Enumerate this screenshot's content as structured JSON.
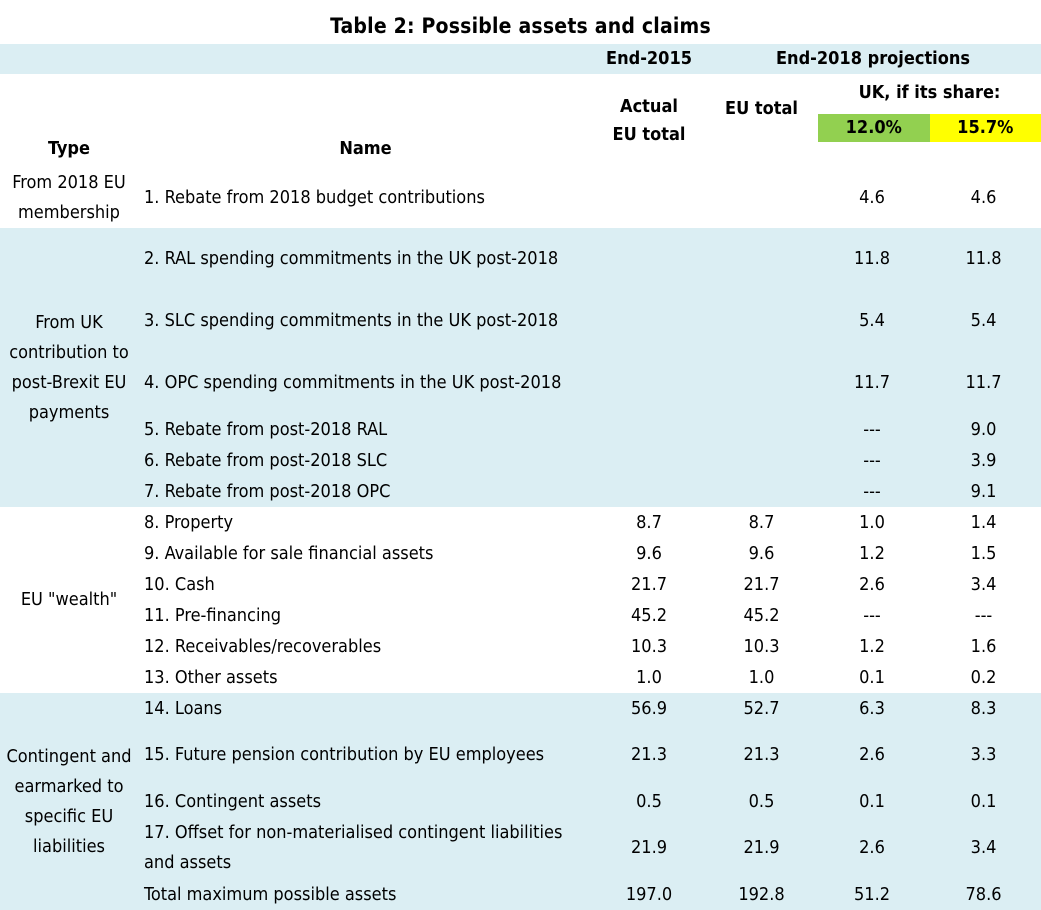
{
  "title": "Table 2: Possible assets and claims",
  "header": {
    "end2015": "End-2015",
    "end2018": "End-2018 projections",
    "type": "Type",
    "name": "Name",
    "actual_eu_total": "Actual EU total",
    "eu_total": "EU total",
    "uk_share": "UK, if its share:",
    "share1": "12.0%",
    "share2": "15.7%"
  },
  "colors": {
    "band": "#dbeef3",
    "share1": "#92d050",
    "share2": "#ffff00"
  },
  "groups": [
    {
      "type": "From 2018 EU membership",
      "shaded": false,
      "rows": [
        {
          "name": "1. Rebate from 2018 budget contributions",
          "actual": "",
          "eu": "",
          "uk1": "4.6",
          "uk2": "4.6",
          "tall": false
        }
      ]
    },
    {
      "type": "From UK contribution to post-Brexit EU payments",
      "shaded": true,
      "rows": [
        {
          "name": "2. RAL spending commitments in the UK post-2018",
          "actual": "",
          "eu": "",
          "uk1": "11.8",
          "uk2": "11.8",
          "tall": true
        },
        {
          "name": "3. SLC spending commitments in the UK post-2018",
          "actual": "",
          "eu": "",
          "uk1": "5.4",
          "uk2": "5.4",
          "tall": true
        },
        {
          "name": "4. OPC spending commitments in the UK post-2018",
          "actual": "",
          "eu": "",
          "uk1": "11.7",
          "uk2": "11.7",
          "tall": true
        },
        {
          "name": "5. Rebate from post-2018 RAL",
          "actual": "",
          "eu": "",
          "uk1": "---",
          "uk2": "9.0",
          "tall": false
        },
        {
          "name": "6. Rebate from post-2018 SLC",
          "actual": "",
          "eu": "",
          "uk1": "---",
          "uk2": "3.9",
          "tall": false
        },
        {
          "name": "7. Rebate from post-2018 OPC",
          "actual": "",
          "eu": "",
          "uk1": "---",
          "uk2": "9.1",
          "tall": false
        }
      ]
    },
    {
      "type": "EU \"wealth\"",
      "shaded": false,
      "rows": [
        {
          "name": "8. Property",
          "actual": "8.7",
          "eu": "8.7",
          "uk1": "1.0",
          "uk2": "1.4",
          "tall": false
        },
        {
          "name": "9. Available for sale financial assets",
          "actual": "9.6",
          "eu": "9.6",
          "uk1": "1.2",
          "uk2": "1.5",
          "tall": false
        },
        {
          "name": "10. Cash",
          "actual": "21.7",
          "eu": "21.7",
          "uk1": "2.6",
          "uk2": "3.4",
          "tall": false
        },
        {
          "name": "11. Pre-financing",
          "actual": "45.2",
          "eu": "45.2",
          "uk1": "---",
          "uk2": "---",
          "tall": false
        },
        {
          "name": "12. Receivables/recoverables",
          "actual": "10.3",
          "eu": "10.3",
          "uk1": "1.2",
          "uk2": "1.6",
          "tall": false
        },
        {
          "name": "13. Other assets",
          "actual": "1.0",
          "eu": "1.0",
          "uk1": "0.1",
          "uk2": "0.2",
          "tall": false
        }
      ]
    },
    {
      "type": "Contingent and earmarked to specific EU liabilities",
      "shaded": true,
      "rows": [
        {
          "name": "14. Loans",
          "actual": "56.9",
          "eu": "52.7",
          "uk1": "6.3",
          "uk2": "8.3",
          "tall": false
        },
        {
          "name": "15. Future pension contribution by EU employees",
          "actual": "21.3",
          "eu": "21.3",
          "uk1": "2.6",
          "uk2": "3.3",
          "tall": true
        },
        {
          "name": "16. Contingent assets",
          "actual": "0.5",
          "eu": "0.5",
          "uk1": "0.1",
          "uk2": "0.1",
          "tall": false
        },
        {
          "name": "17. Offset for non-materialised contingent liabilities and assets",
          "actual": "21.9",
          "eu": "21.9",
          "uk1": "2.6",
          "uk2": "3.4",
          "tall": true
        },
        {
          "name": "Total maximum possible assets",
          "actual": "197.0",
          "eu": "192.8",
          "uk1": "51.2",
          "uk2": "78.6",
          "tall": false
        }
      ]
    }
  ]
}
